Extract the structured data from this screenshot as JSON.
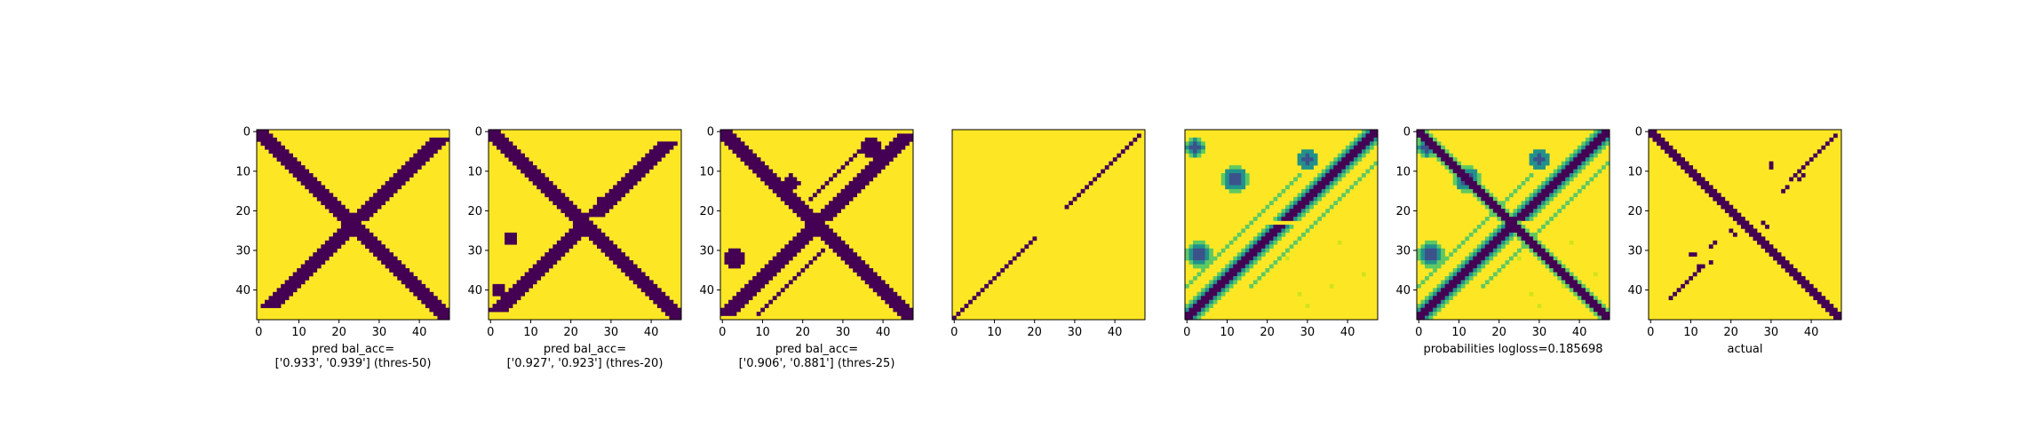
{
  "colors": {
    "yellow": "#fde725",
    "purple": "#440154",
    "teal": "#21918c",
    "green": "#5ec962",
    "blue": "#3b528b"
  },
  "chart_data": [
    {
      "type": "heatmap",
      "grid_size": 48,
      "xticks": [
        "0",
        "10",
        "20",
        "30",
        "40"
      ],
      "yticks": [
        "0",
        "10",
        "20",
        "30",
        "40"
      ],
      "caption": [
        "pred bal_acc=",
        "['0.933', '0.939'] (thres-50)"
      ],
      "pattern": "thresholded",
      "bands": [
        {
          "kind": "diag",
          "offset": 0,
          "width": 2.2
        },
        {
          "kind": "anti",
          "offset": 0,
          "width": 2.0,
          "from": 2,
          "to": 22
        },
        {
          "kind": "anti",
          "offset": 0,
          "width": 2.0,
          "from": 24,
          "to": 44
        }
      ]
    },
    {
      "type": "heatmap",
      "grid_size": 48,
      "xticks": [
        "0",
        "10",
        "20",
        "30",
        "40"
      ],
      "yticks": [
        "0",
        "10",
        "20",
        "30",
        "40"
      ],
      "caption": [
        "pred bal_acc=",
        "['0.927', '0.923'] (thres-20)"
      ],
      "pattern": "thresholded",
      "bands": [
        {
          "kind": "diag",
          "offset": 0,
          "width": 2.2
        },
        {
          "kind": "anti",
          "offset": 0,
          "width": 2.0,
          "from": 3,
          "to": 21
        },
        {
          "kind": "anti",
          "offset": 0,
          "width": 2.0,
          "from": 24,
          "to": 45
        }
      ],
      "blobs": [
        [
          27,
          5,
          1.5
        ],
        [
          18,
          28,
          1.5
        ],
        [
          40,
          2,
          1.5
        ]
      ]
    },
    {
      "type": "heatmap",
      "grid_size": 48,
      "xticks": [
        "0",
        "10",
        "20",
        "30",
        "40"
      ],
      "yticks": [
        "0",
        "10",
        "20",
        "30",
        "40"
      ],
      "caption": [
        "pred bal_acc=",
        "['0.906', '0.881'] (thres-25)"
      ],
      "pattern": "thresholded",
      "bands": [
        {
          "kind": "diag",
          "offset": 0,
          "width": 2.4
        },
        {
          "kind": "anti",
          "offset": 0,
          "width": 2.2,
          "from": 1,
          "to": 22
        },
        {
          "kind": "anti",
          "offset": 0,
          "width": 2.2,
          "from": 24,
          "to": 46
        },
        {
          "kind": "anti",
          "offset": 8,
          "width": 0.8,
          "from": 30,
          "to": 46
        },
        {
          "kind": "anti",
          "offset": -8,
          "width": 0.8,
          "from": 2,
          "to": 17
        }
      ],
      "blobs": [
        [
          32,
          3,
          2.5
        ],
        [
          4,
          37,
          2.5
        ],
        [
          13,
          17,
          2.0
        ]
      ]
    },
    {
      "type": "heatmap",
      "grid_size": 48,
      "xticks": [
        "0",
        "10",
        "20",
        "30",
        "40"
      ],
      "yticks": [],
      "caption": [],
      "pattern": "antidiag-line"
    },
    {
      "type": "heatmap",
      "grid_size": 48,
      "xticks": [
        "0",
        "10",
        "20",
        "30",
        "40"
      ],
      "yticks": [],
      "caption": [],
      "pattern": "probabilities-no-diag"
    },
    {
      "type": "heatmap",
      "grid_size": 48,
      "xticks": [
        "0",
        "10",
        "20",
        "30",
        "40"
      ],
      "yticks": [
        "0",
        "10",
        "20",
        "30",
        "40"
      ],
      "caption": [
        "probabilities logloss=0.185698"
      ],
      "pattern": "probabilities"
    },
    {
      "type": "heatmap",
      "grid_size": 48,
      "xticks": [
        "0",
        "10",
        "20",
        "30",
        "40"
      ],
      "yticks": [
        "0",
        "10",
        "20",
        "30",
        "40"
      ],
      "caption": [
        "actual"
      ],
      "pattern": "actual"
    }
  ]
}
